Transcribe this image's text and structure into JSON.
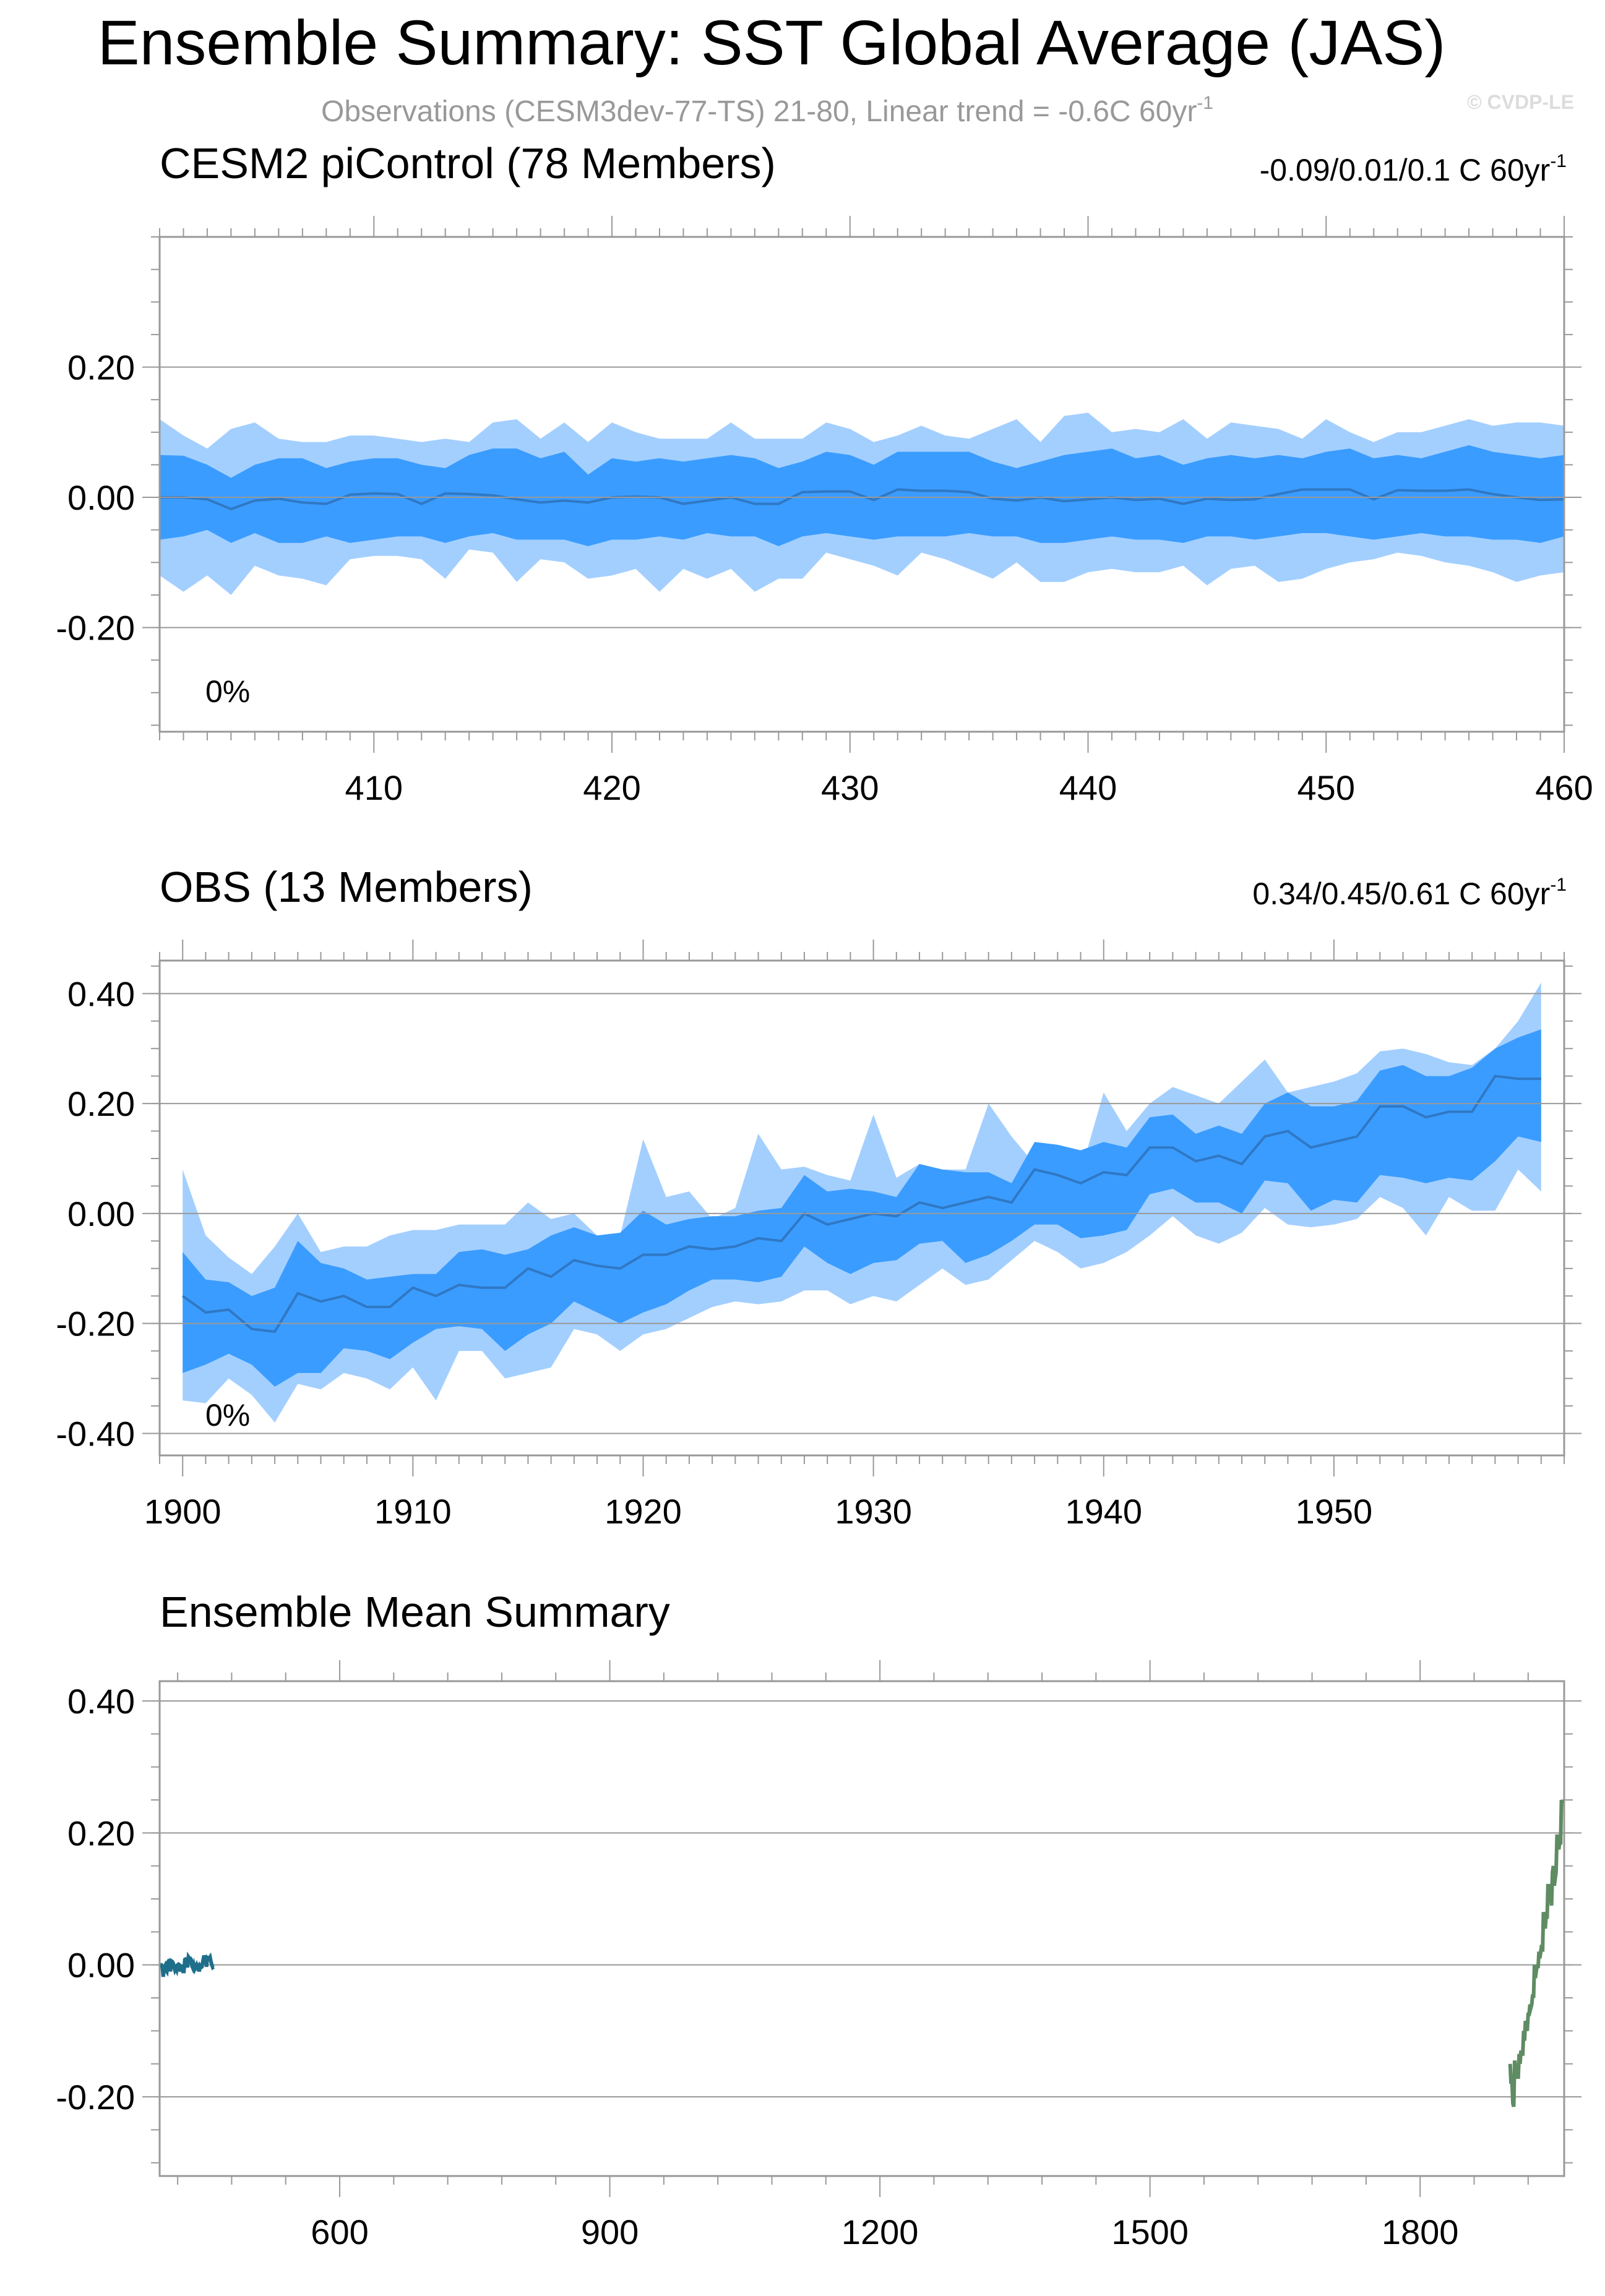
{
  "title": "Ensemble Summary: SST Global Average (JAS)",
  "subtitle": "Observations (CESM3dev-77-TS) 21-80, Linear trend = -0.6C 60yr",
  "subtitle_sup": "-1",
  "copyright": "© CVDP-LE",
  "colors": {
    "outer_band": "#a3cfff",
    "inner_band": "#3a9cff",
    "mean_line": "#2f78c4",
    "picontrol_title": "#1f6f8b",
    "obs_title": "#5f8c63",
    "summary_picontrol": "#1f6f8b",
    "summary_obs": "#5f8c63"
  },
  "panels": {
    "picontrol": {
      "title": "CESM2 piControl (78 Members)",
      "trend_text": "-0.09/0.01/0.1 C 60yr",
      "trend_sup": "-1",
      "percent_label": "0%"
    },
    "obs": {
      "title": "OBS (13 Members)",
      "trend_text": "0.34/0.45/0.61 C 60yr",
      "trend_sup": "-1",
      "percent_label": "0%"
    },
    "summary": {
      "title": "Ensemble Mean Summary"
    }
  },
  "chart_data": [
    {
      "type": "area",
      "id": "picontrol",
      "title": "CESM2 piControl (78 Members)",
      "xlabel": "",
      "ylabel": "",
      "xlim": [
        401,
        460
      ],
      "ylim": [
        -0.36,
        0.4
      ],
      "x_ticks": [
        410,
        420,
        430,
        440,
        450,
        460
      ],
      "y_ticks": [
        -0.2,
        0.0,
        0.2
      ],
      "y_tick_labels": [
        "-0.20",
        "0.00",
        "0.20"
      ],
      "x_start": 401,
      "series": [
        {
          "name": "mean",
          "values": [
            0.0,
            0.0,
            -0.003,
            -0.018,
            -0.005,
            -0.002,
            -0.008,
            -0.01,
            0.004,
            0.006,
            0.005,
            -0.01,
            0.006,
            0.005,
            0.003,
            -0.003,
            -0.008,
            -0.005,
            -0.008,
            0.0,
            0.001,
            0.0,
            -0.01,
            -0.005,
            0.0,
            -0.01,
            -0.01,
            0.008,
            0.009,
            0.009,
            -0.004,
            0.012,
            0.01,
            0.01,
            0.008,
            -0.002,
            -0.005,
            0.0,
            -0.006,
            -0.003,
            0.0,
            -0.004,
            -0.002,
            -0.01,
            -0.002,
            -0.004,
            -0.003,
            0.005,
            0.012,
            0.012,
            0.012,
            -0.003,
            0.011,
            0.01,
            0.01,
            0.012,
            0.005,
            0.0,
            -0.004,
            -0.003
          ]
        },
        {
          "name": "inner_upper",
          "values": [
            0.065,
            0.064,
            0.05,
            0.03,
            0.05,
            0.06,
            0.06,
            0.045,
            0.055,
            0.06,
            0.06,
            0.05,
            0.045,
            0.065,
            0.075,
            0.075,
            0.06,
            0.07,
            0.035,
            0.06,
            0.055,
            0.06,
            0.055,
            0.06,
            0.065,
            0.06,
            0.045,
            0.055,
            0.07,
            0.065,
            0.05,
            0.07,
            0.07,
            0.07,
            0.07,
            0.055,
            0.045,
            0.055,
            0.065,
            0.07,
            0.075,
            0.06,
            0.065,
            0.05,
            0.06,
            0.065,
            0.06,
            0.065,
            0.06,
            0.07,
            0.075,
            0.06,
            0.065,
            0.06,
            0.07,
            0.08,
            0.07,
            0.065,
            0.06,
            0.065
          ]
        },
        {
          "name": "inner_lower",
          "values": [
            -0.065,
            -0.06,
            -0.05,
            -0.07,
            -0.055,
            -0.07,
            -0.07,
            -0.06,
            -0.07,
            -0.065,
            -0.06,
            -0.06,
            -0.07,
            -0.06,
            -0.055,
            -0.065,
            -0.065,
            -0.065,
            -0.075,
            -0.065,
            -0.065,
            -0.06,
            -0.065,
            -0.055,
            -0.06,
            -0.06,
            -0.075,
            -0.06,
            -0.055,
            -0.06,
            -0.065,
            -0.06,
            -0.06,
            -0.06,
            -0.055,
            -0.06,
            -0.06,
            -0.07,
            -0.07,
            -0.065,
            -0.06,
            -0.065,
            -0.065,
            -0.07,
            -0.06,
            -0.06,
            -0.065,
            -0.06,
            -0.055,
            -0.055,
            -0.06,
            -0.065,
            -0.06,
            -0.055,
            -0.06,
            -0.06,
            -0.065,
            -0.065,
            -0.07,
            -0.06
          ]
        },
        {
          "name": "outer_upper",
          "values": [
            0.12,
            0.095,
            0.075,
            0.105,
            0.115,
            0.09,
            0.085,
            0.085,
            0.095,
            0.095,
            0.09,
            0.085,
            0.09,
            0.085,
            0.115,
            0.12,
            0.09,
            0.115,
            0.085,
            0.115,
            0.1,
            0.09,
            0.09,
            0.09,
            0.115,
            0.09,
            0.09,
            0.09,
            0.115,
            0.105,
            0.085,
            0.095,
            0.11,
            0.095,
            0.09,
            0.105,
            0.12,
            0.085,
            0.125,
            0.13,
            0.1,
            0.105,
            0.1,
            0.12,
            0.09,
            0.115,
            0.11,
            0.105,
            0.09,
            0.12,
            0.1,
            0.085,
            0.1,
            0.1,
            0.11,
            0.12,
            0.11,
            0.115,
            0.115,
            0.11
          ]
        },
        {
          "name": "outer_lower",
          "values": [
            -0.12,
            -0.145,
            -0.12,
            -0.15,
            -0.105,
            -0.12,
            -0.125,
            -0.135,
            -0.095,
            -0.09,
            -0.09,
            -0.095,
            -0.125,
            -0.08,
            -0.085,
            -0.13,
            -0.095,
            -0.1,
            -0.125,
            -0.12,
            -0.11,
            -0.145,
            -0.11,
            -0.125,
            -0.11,
            -0.145,
            -0.125,
            -0.125,
            -0.085,
            -0.095,
            -0.105,
            -0.12,
            -0.085,
            -0.095,
            -0.11,
            -0.125,
            -0.1,
            -0.13,
            -0.13,
            -0.115,
            -0.11,
            -0.115,
            -0.115,
            -0.105,
            -0.135,
            -0.11,
            -0.105,
            -0.13,
            -0.125,
            -0.11,
            -0.1,
            -0.095,
            -0.085,
            -0.09,
            -0.1,
            -0.105,
            -0.115,
            -0.13,
            -0.12,
            -0.115
          ]
        }
      ]
    },
    {
      "type": "area",
      "id": "obs",
      "title": "OBS (13 Members)",
      "xlabel": "",
      "ylabel": "",
      "xlim": [
        1899,
        1960
      ],
      "ylim": [
        -0.44,
        0.46
      ],
      "x_ticks": [
        1900,
        1910,
        1920,
        1930,
        1940,
        1950
      ],
      "y_ticks": [
        -0.4,
        -0.2,
        0.0,
        0.2,
        0.4
      ],
      "y_tick_labels": [
        "-0.40",
        "-0.20",
        "0.00",
        "0.20",
        "0.40"
      ],
      "x_start": 1900,
      "series": [
        {
          "name": "mean",
          "values": [
            -0.15,
            -0.18,
            -0.175,
            -0.21,
            -0.215,
            -0.145,
            -0.16,
            -0.15,
            -0.17,
            -0.17,
            -0.135,
            -0.15,
            -0.13,
            -0.135,
            -0.135,
            -0.1,
            -0.115,
            -0.085,
            -0.095,
            -0.1,
            -0.075,
            -0.075,
            -0.06,
            -0.065,
            -0.06,
            -0.045,
            -0.05,
            0.0,
            -0.02,
            -0.01,
            0.0,
            -0.005,
            0.02,
            0.01,
            0.02,
            0.03,
            0.02,
            0.08,
            0.07,
            0.055,
            0.075,
            0.07,
            0.12,
            0.12,
            0.095,
            0.105,
            0.09,
            0.14,
            0.15,
            0.12,
            0.13,
            0.14,
            0.195,
            0.195,
            0.175,
            0.185,
            0.185,
            0.25,
            0.245,
            0.245
          ]
        },
        {
          "name": "inner_upper",
          "values": [
            -0.07,
            -0.12,
            -0.125,
            -0.15,
            -0.135,
            -0.05,
            -0.09,
            -0.1,
            -0.12,
            -0.115,
            -0.11,
            -0.11,
            -0.07,
            -0.065,
            -0.075,
            -0.065,
            -0.04,
            -0.025,
            -0.04,
            -0.035,
            0.005,
            -0.02,
            -0.01,
            -0.005,
            -0.005,
            0.005,
            0.01,
            0.07,
            0.04,
            0.045,
            0.04,
            0.03,
            0.09,
            0.08,
            0.075,
            0.075,
            0.055,
            0.13,
            0.125,
            0.115,
            0.13,
            0.12,
            0.175,
            0.18,
            0.145,
            0.16,
            0.145,
            0.2,
            0.22,
            0.195,
            0.195,
            0.205,
            0.26,
            0.27,
            0.25,
            0.25,
            0.265,
            0.3,
            0.32,
            0.335
          ]
        },
        {
          "name": "inner_lower",
          "values": [
            -0.29,
            -0.275,
            -0.255,
            -0.275,
            -0.315,
            -0.29,
            -0.29,
            -0.245,
            -0.25,
            -0.265,
            -0.235,
            -0.21,
            -0.205,
            -0.21,
            -0.25,
            -0.22,
            -0.2,
            -0.16,
            -0.18,
            -0.2,
            -0.18,
            -0.165,
            -0.14,
            -0.12,
            -0.12,
            -0.125,
            -0.115,
            -0.06,
            -0.09,
            -0.11,
            -0.09,
            -0.085,
            -0.055,
            -0.05,
            -0.09,
            -0.075,
            -0.05,
            -0.02,
            -0.02,
            -0.045,
            -0.04,
            -0.03,
            0.035,
            0.045,
            0.02,
            0.02,
            0.0,
            0.06,
            0.055,
            0.005,
            0.025,
            0.02,
            0.07,
            0.065,
            0.055,
            0.065,
            0.06,
            0.095,
            0.14,
            0.13
          ]
        },
        {
          "name": "outer_upper",
          "values": [
            0.08,
            -0.04,
            -0.08,
            -0.11,
            -0.06,
            -0.0,
            -0.07,
            -0.06,
            -0.06,
            -0.04,
            -0.03,
            -0.03,
            -0.02,
            -0.02,
            -0.02,
            0.02,
            -0.01,
            0.0,
            -0.04,
            -0.04,
            0.135,
            0.03,
            0.04,
            -0.01,
            0.01,
            0.145,
            0.08,
            0.085,
            0.07,
            0.06,
            0.18,
            0.065,
            0.09,
            0.08,
            0.08,
            0.2,
            0.14,
            0.09,
            0.09,
            0.075,
            0.22,
            0.15,
            0.2,
            0.23,
            0.215,
            0.2,
            0.24,
            0.28,
            0.22,
            0.23,
            0.24,
            0.255,
            0.295,
            0.3,
            0.29,
            0.275,
            0.27,
            0.3,
            0.35,
            0.42
          ]
        },
        {
          "name": "outer_lower",
          "values": [
            -0.34,
            -0.345,
            -0.3,
            -0.33,
            -0.38,
            -0.31,
            -0.32,
            -0.29,
            -0.3,
            -0.32,
            -0.28,
            -0.34,
            -0.25,
            -0.25,
            -0.3,
            -0.29,
            -0.28,
            -0.21,
            -0.22,
            -0.25,
            -0.22,
            -0.21,
            -0.19,
            -0.17,
            -0.16,
            -0.165,
            -0.16,
            -0.14,
            -0.14,
            -0.165,
            -0.15,
            -0.16,
            -0.13,
            -0.1,
            -0.13,
            -0.12,
            -0.085,
            -0.05,
            -0.07,
            -0.1,
            -0.09,
            -0.07,
            -0.04,
            -0.005,
            -0.04,
            -0.055,
            -0.035,
            0.01,
            -0.02,
            -0.025,
            -0.02,
            -0.01,
            0.03,
            0.01,
            -0.04,
            0.03,
            0.005,
            0.005,
            0.08,
            0.04
          ]
        }
      ]
    },
    {
      "type": "line",
      "id": "summary",
      "title": "Ensemble Mean Summary",
      "xlabel": "",
      "ylabel": "",
      "xlim": [
        400,
        1960
      ],
      "ylim": [
        -0.32,
        0.43
      ],
      "x_ticks": [
        600,
        900,
        1200,
        1500,
        1800
      ],
      "y_ticks": [
        -0.2,
        0.0,
        0.2,
        0.4
      ],
      "y_tick_labels": [
        "-0.20",
        "0.00",
        "0.20",
        "0.40"
      ],
      "series": [
        {
          "name": "CESM2 piControl",
          "color_key": "summary_picontrol",
          "x_start": 401,
          "source": "picontrol"
        },
        {
          "name": "OBS",
          "color_key": "summary_obs",
          "x_start": 1900,
          "source": "obs"
        }
      ]
    }
  ]
}
